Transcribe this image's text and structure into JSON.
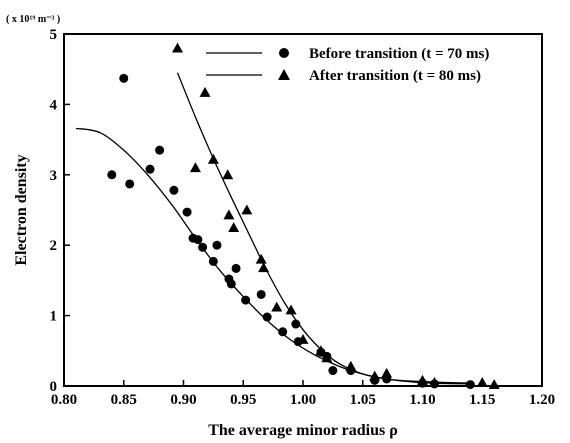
{
  "chart_data": {
    "type": "scatter",
    "xlabel": "The average minor radius ρ",
    "ylabel": "Electron density",
    "y_unit_note": "( x 10¹⁹ m⁻³ )",
    "xlim": [
      0.8,
      1.2
    ],
    "ylim": [
      0,
      5
    ],
    "x_ticks": [
      "0.80",
      "0.85",
      "0.90",
      "0.95",
      "1.00",
      "1.05",
      "1.10",
      "1.15",
      "1.20"
    ],
    "y_ticks": [
      "0",
      "1",
      "2",
      "3",
      "4",
      "5"
    ],
    "legend_position": "top-right",
    "series": [
      {
        "name": "Before transition (t = 70 ms)",
        "marker": "circle",
        "points": [
          [
            0.84,
            3.0
          ],
          [
            0.85,
            4.37
          ],
          [
            0.855,
            2.87
          ],
          [
            0.872,
            3.08
          ],
          [
            0.88,
            3.35
          ],
          [
            0.892,
            2.78
          ],
          [
            0.903,
            2.47
          ],
          [
            0.908,
            2.1
          ],
          [
            0.912,
            2.08
          ],
          [
            0.916,
            1.97
          ],
          [
            0.925,
            1.77
          ],
          [
            0.928,
            2.0
          ],
          [
            0.938,
            1.52
          ],
          [
            0.94,
            1.45
          ],
          [
            0.944,
            1.67
          ],
          [
            0.952,
            1.22
          ],
          [
            0.965,
            1.3
          ],
          [
            0.97,
            0.98
          ],
          [
            0.983,
            0.77
          ],
          [
            0.994,
            0.88
          ],
          [
            0.996,
            0.63
          ],
          [
            1.015,
            0.48
          ],
          [
            1.02,
            0.42
          ],
          [
            1.025,
            0.22
          ],
          [
            1.04,
            0.22
          ],
          [
            1.06,
            0.08
          ],
          [
            1.07,
            0.1
          ],
          [
            1.1,
            0.04
          ],
          [
            1.11,
            0.03
          ],
          [
            1.14,
            0.02
          ]
        ],
        "fit_curve": [
          [
            0.81,
            3.66
          ],
          [
            0.83,
            3.6
          ],
          [
            0.85,
            3.35
          ],
          [
            0.87,
            3.0
          ],
          [
            0.89,
            2.58
          ],
          [
            0.91,
            2.1
          ],
          [
            0.93,
            1.65
          ],
          [
            0.95,
            1.27
          ],
          [
            0.97,
            0.93
          ],
          [
            0.99,
            0.65
          ],
          [
            1.01,
            0.44
          ],
          [
            1.03,
            0.28
          ],
          [
            1.05,
            0.17
          ],
          [
            1.07,
            0.1
          ],
          [
            1.09,
            0.06
          ],
          [
            1.11,
            0.04
          ],
          [
            1.14,
            0.03
          ]
        ]
      },
      {
        "name": "After transition (t = 80 ms)",
        "marker": "triangle",
        "points": [
          [
            0.895,
            4.8
          ],
          [
            0.91,
            3.1
          ],
          [
            0.918,
            4.17
          ],
          [
            0.925,
            3.22
          ],
          [
            0.937,
            3.0
          ],
          [
            0.938,
            2.43
          ],
          [
            0.942,
            2.25
          ],
          [
            0.953,
            2.5
          ],
          [
            0.965,
            1.8
          ],
          [
            0.967,
            1.68
          ],
          [
            0.978,
            1.12
          ],
          [
            0.99,
            1.08
          ],
          [
            1.0,
            0.66
          ],
          [
            1.015,
            0.5
          ],
          [
            1.02,
            0.4
          ],
          [
            1.04,
            0.28
          ],
          [
            1.06,
            0.14
          ],
          [
            1.07,
            0.18
          ],
          [
            1.1,
            0.08
          ],
          [
            1.11,
            0.05
          ],
          [
            1.15,
            0.05
          ],
          [
            1.16,
            0.02
          ]
        ],
        "fit_curve": [
          [
            0.895,
            4.45
          ],
          [
            0.91,
            3.82
          ],
          [
            0.925,
            3.23
          ],
          [
            0.94,
            2.68
          ],
          [
            0.955,
            2.15
          ],
          [
            0.97,
            1.63
          ],
          [
            0.985,
            1.17
          ],
          [
            1.0,
            0.8
          ],
          [
            1.015,
            0.52
          ],
          [
            1.03,
            0.32
          ],
          [
            1.05,
            0.17
          ],
          [
            1.07,
            0.1
          ],
          [
            1.09,
            0.07
          ],
          [
            1.12,
            0.05
          ],
          [
            1.14,
            0.04
          ]
        ]
      }
    ]
  }
}
